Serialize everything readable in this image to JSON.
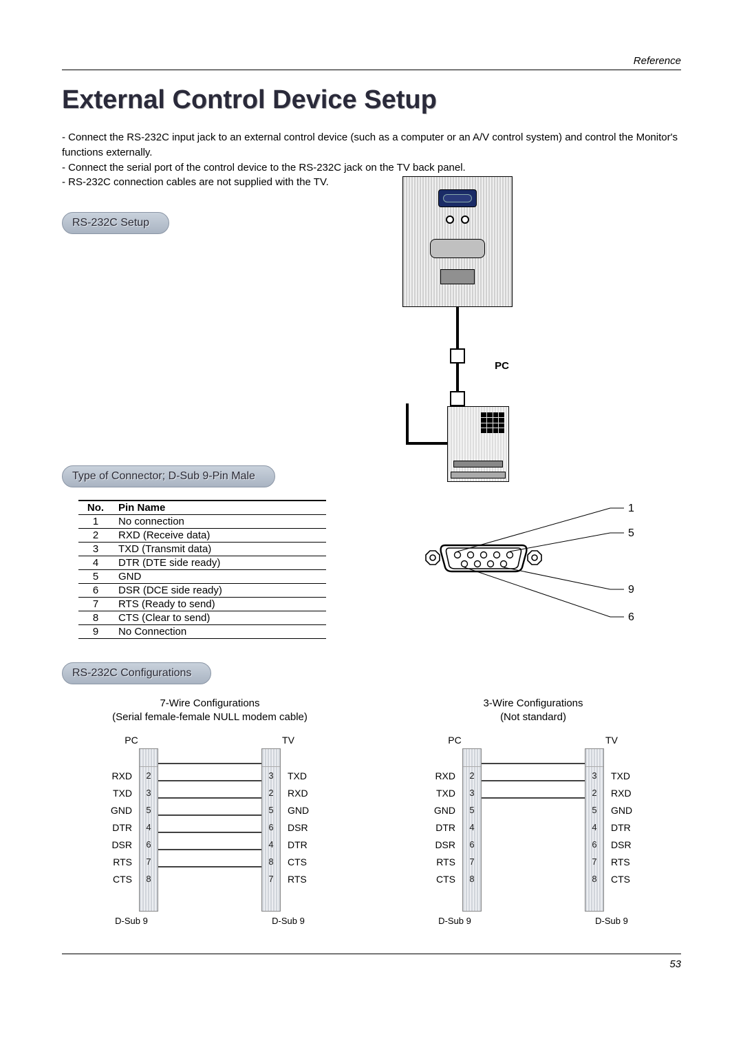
{
  "colors": {
    "text": "#000000",
    "title": "#2a2a3a",
    "pill_top": "#c9d2dc",
    "pill_bot": "#a9b4c2",
    "hatch_a": "#d0d4da",
    "hatch_b": "#eceef2",
    "rule": "#000000"
  },
  "header_ref": "Reference",
  "title": "External Control Device Setup",
  "intro_bullets": [
    "Connect the RS-232C input jack to an external control device (such as a computer or an A/V control system) and control the Monitor's functions externally.",
    "Connect the serial port of the control device to the RS-232C jack on the TV back panel.",
    "RS-232C connection cables are not supplied with the TV."
  ],
  "section_setup": "RS-232C Setup",
  "pc_label": "PC",
  "section_connector": "Type of Connector; D-Sub 9-Pin Male",
  "pin_table": {
    "headers": [
      "No.",
      "Pin Name"
    ],
    "rows": [
      [
        "1",
        "No connection"
      ],
      [
        "2",
        "RXD (Receive data)"
      ],
      [
        "3",
        "TXD (Transmit data)"
      ],
      [
        "4",
        "DTR (DTE side ready)"
      ],
      [
        "5",
        "GND"
      ],
      [
        "6",
        "DSR (DCE side ready)"
      ],
      [
        "7",
        "RTS (Ready to send)"
      ],
      [
        "8",
        "CTS (Clear to send)"
      ],
      [
        "9",
        "No Connection"
      ]
    ]
  },
  "db9_callouts": [
    "1",
    "5",
    "9",
    "6"
  ],
  "section_configs": "RS-232C Configurations",
  "config_7wire": {
    "title_l1": "7-Wire Configurations",
    "title_l2": "(Serial female-female NULL modem cable)",
    "pc_header": "PC",
    "tv_header": "TV",
    "dsub_label": "D-Sub 9",
    "pc": {
      "labels": [
        "RXD",
        "TXD",
        "GND",
        "DTR",
        "DSR",
        "RTS",
        "CTS"
      ],
      "pins": [
        "2",
        "3",
        "5",
        "4",
        "6",
        "7",
        "8"
      ]
    },
    "tv": {
      "pins": [
        "3",
        "2",
        "5",
        "6",
        "4",
        "8",
        "7"
      ],
      "labels": [
        "TXD",
        "RXD",
        "GND",
        "DSR",
        "DTR",
        "CTS",
        "RTS"
      ]
    },
    "links": [
      [
        0,
        0
      ],
      [
        1,
        1
      ],
      [
        2,
        2
      ],
      [
        3,
        3
      ],
      [
        4,
        4
      ],
      [
        5,
        5
      ],
      [
        6,
        6
      ]
    ]
  },
  "config_3wire": {
    "title_l1": "3-Wire Configurations",
    "title_l2": "(Not standard)",
    "pc_header": "PC",
    "tv_header": "TV",
    "dsub_label": "D-Sub 9",
    "pc": {
      "labels": [
        "RXD",
        "TXD",
        "GND",
        "DTR",
        "DSR",
        "RTS",
        "CTS"
      ],
      "pins": [
        "2",
        "3",
        "5",
        "4",
        "6",
        "7",
        "8"
      ]
    },
    "tv": {
      "pins": [
        "3",
        "2",
        "5",
        "4",
        "6",
        "7",
        "8"
      ],
      "labels": [
        "TXD",
        "RXD",
        "GND",
        "DTR",
        "DSR",
        "RTS",
        "CTS"
      ]
    },
    "links": [
      [
        0,
        0
      ],
      [
        1,
        1
      ],
      [
        2,
        2
      ]
    ]
  },
  "page_number": "53"
}
